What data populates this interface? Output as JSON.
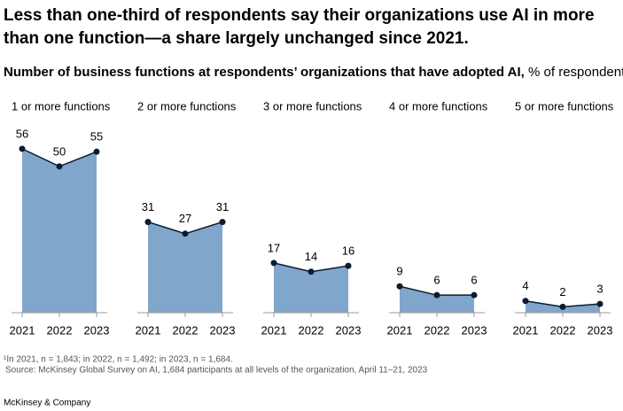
{
  "title": [
    "Less than one-third of respondents say their organizations use AI in more",
    "than one function—a share largely unchanged since 2021."
  ],
  "subtitle": {
    "bold": "Number of business functions at respondents’ organizations that have adopted AI,",
    "rest": "% of respondents",
    "note_mark": "1"
  },
  "footnote": "¹In 2021, n = 1,843; in 2022, n = 1,492; in 2023, n = 1,684.",
  "source": "Source: McKinsey Global Survey on AI, 1,684 participants at all levels of the organization, April 11–21, 2023",
  "brand": "McKinsey & Company",
  "chart_data": [
    {
      "type": "area",
      "title": "1 or more functions",
      "categories": [
        "2021",
        "2022",
        "2023"
      ],
      "values": [
        56,
        50,
        55
      ],
      "color": "#81a6cb",
      "ylim": [
        0,
        56
      ]
    },
    {
      "type": "area",
      "title": "2 or more functions",
      "categories": [
        "2021",
        "2022",
        "2023"
      ],
      "values": [
        31,
        27,
        31
      ],
      "color": "#81a6cb",
      "ylim": [
        0,
        56
      ]
    },
    {
      "type": "area",
      "title": "3 or more functions",
      "categories": [
        "2021",
        "2022",
        "2023"
      ],
      "values": [
        17,
        14,
        16
      ],
      "color": "#81a6cb",
      "ylim": [
        0,
        56
      ]
    },
    {
      "type": "area",
      "title": "4 or more functions",
      "categories": [
        "2021",
        "2022",
        "2023"
      ],
      "values": [
        9,
        6,
        6
      ],
      "color": "#81a6cb",
      "ylim": [
        0,
        56
      ]
    },
    {
      "type": "area",
      "title": "5 or more functions",
      "categories": [
        "2021",
        "2022",
        "2023"
      ],
      "values": [
        4,
        2,
        3
      ],
      "color": "#81a6cb",
      "ylim": [
        0,
        56
      ]
    }
  ]
}
